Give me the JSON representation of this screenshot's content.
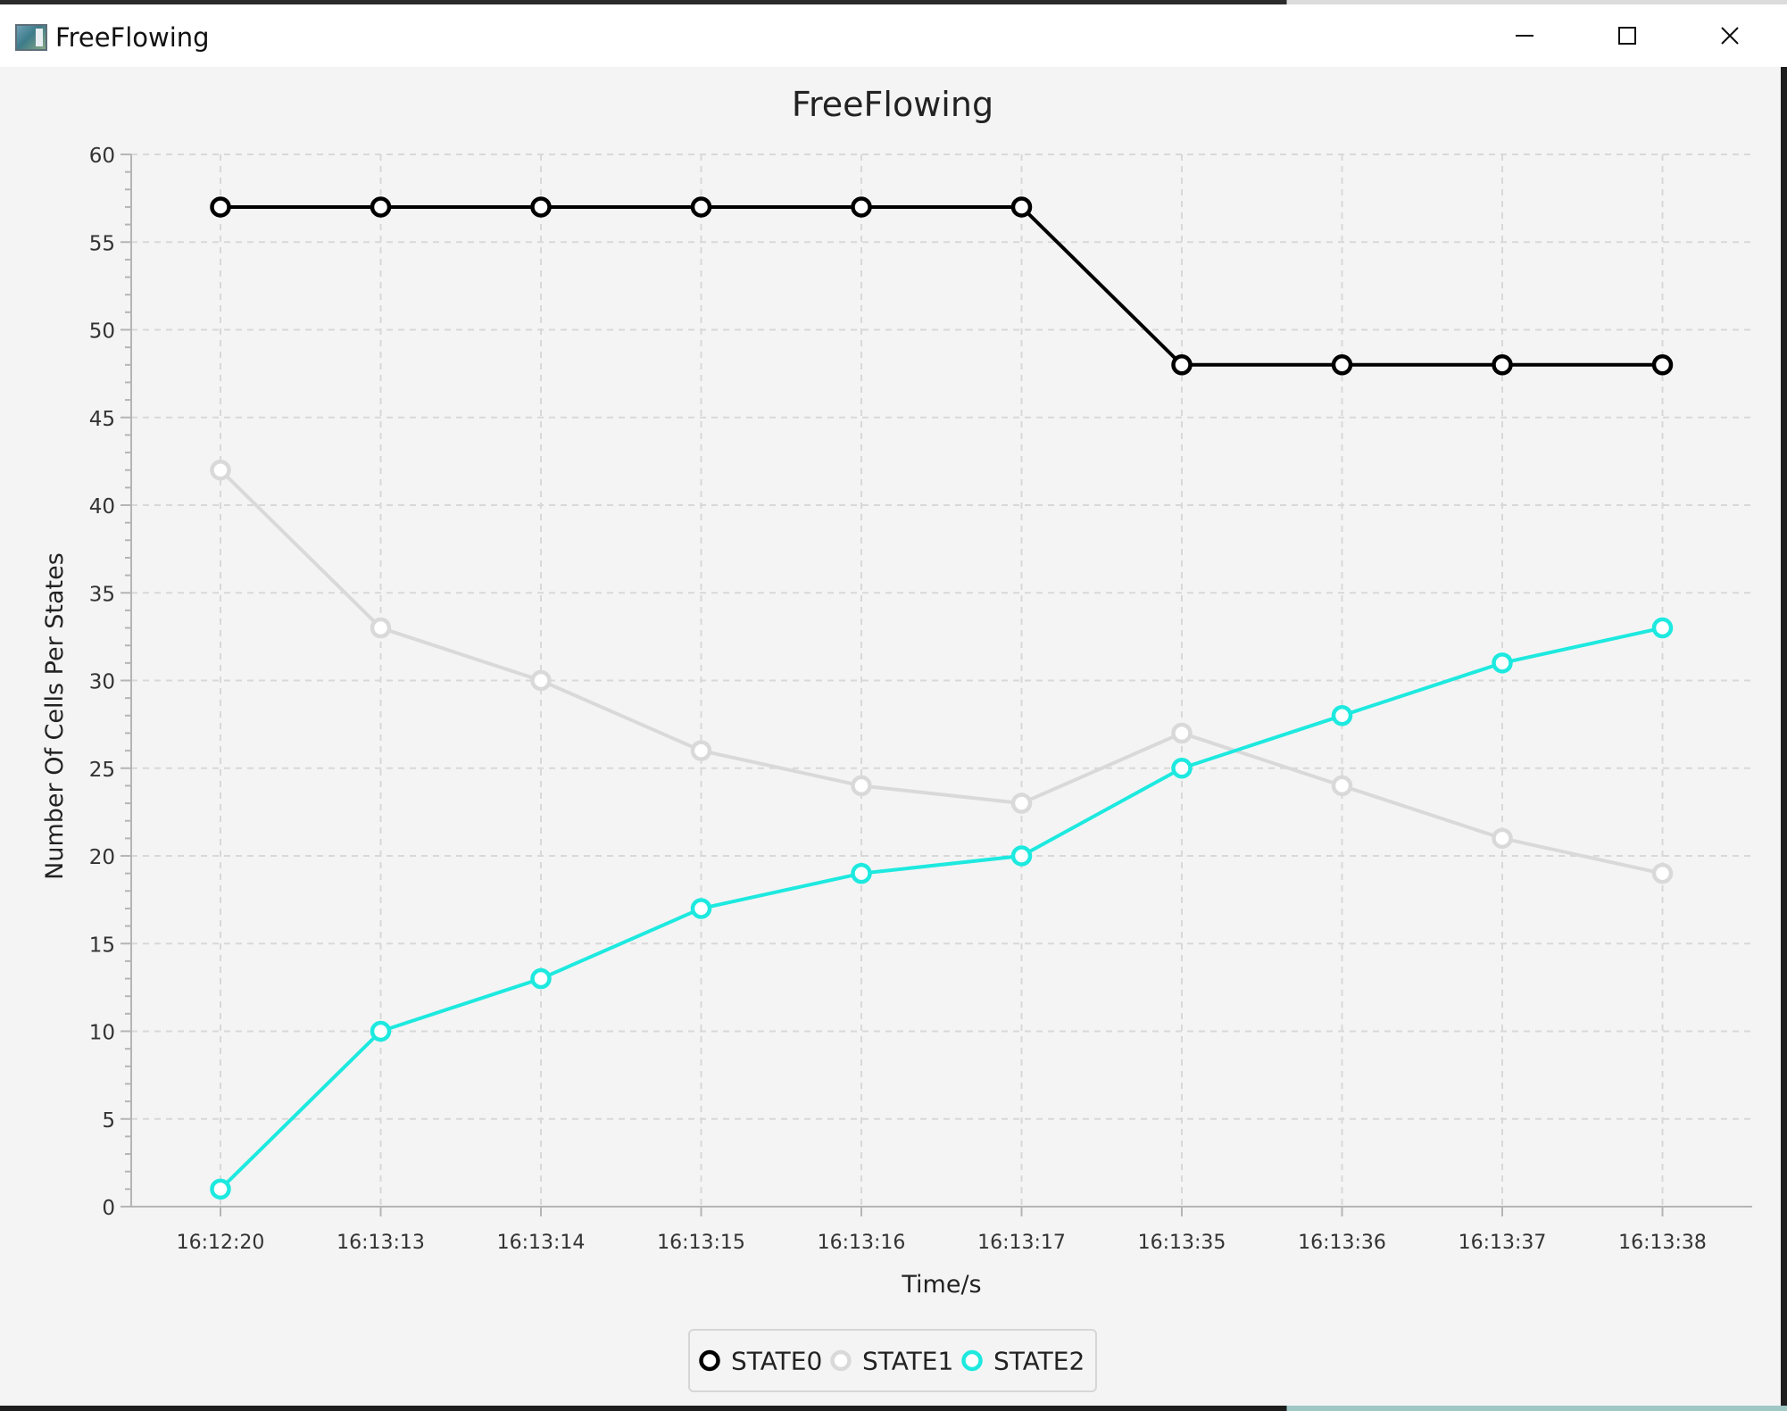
{
  "window": {
    "title": "FreeFlowing",
    "controls": [
      "minimize",
      "maximize",
      "close"
    ]
  },
  "colors": {
    "STATE0": "#000000",
    "STATE1": "#d9d9d9",
    "STATE2": "#1de9df",
    "background": "#f4f4f4"
  },
  "chart_data": {
    "type": "line",
    "title": "FreeFlowing",
    "xlabel": "Time/s",
    "ylabel": "Number Of Cells Per States",
    "categories": [
      "16:12:20",
      "16:13:13",
      "16:13:14",
      "16:13:15",
      "16:13:16",
      "16:13:17",
      "16:13:35",
      "16:13:36",
      "16:13:37",
      "16:13:38"
    ],
    "ylim": [
      0,
      60
    ],
    "yticks": [
      0,
      5,
      10,
      15,
      20,
      25,
      30,
      35,
      40,
      45,
      50,
      55,
      60
    ],
    "grid": true,
    "legend": "bottom-center",
    "series": [
      {
        "name": "STATE0",
        "values": [
          57,
          57,
          57,
          57,
          57,
          57,
          48,
          48,
          48,
          48
        ]
      },
      {
        "name": "STATE1",
        "values": [
          42,
          33,
          30,
          26,
          24,
          23,
          27,
          24,
          21,
          19
        ]
      },
      {
        "name": "STATE2",
        "values": [
          1,
          10,
          13,
          17,
          19,
          20,
          25,
          28,
          31,
          33
        ]
      }
    ]
  }
}
